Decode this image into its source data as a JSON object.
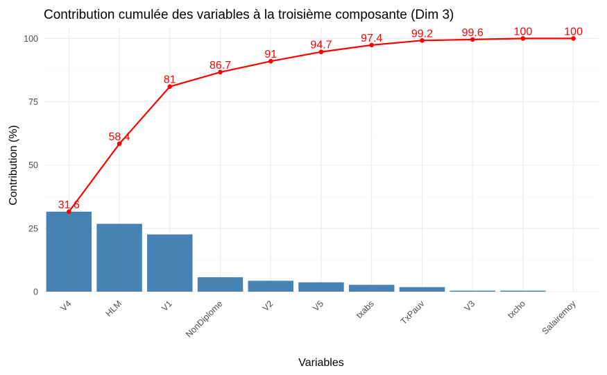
{
  "chart_data": {
    "type": "bar",
    "title": "Contribution cumulée des variables à la troisième composante (Dim 3)",
    "xlabel": "Variables",
    "ylabel": "Contribution (%)",
    "ylim": [
      0,
      104.5
    ],
    "yticks": [
      0,
      25,
      50,
      75,
      100
    ],
    "grid": true,
    "categories": [
      "V4",
      "HLM",
      "V1",
      "NonDiplome",
      "V2",
      "V5",
      "txabs",
      "TxPauv",
      "V3",
      "txcho",
      "Salairemoy"
    ],
    "series": [
      {
        "type": "bar",
        "values": [
          31.6,
          26.8,
          22.6,
          5.7,
          4.3,
          3.7,
          2.7,
          1.8,
          0.4,
          0.4,
          0.0
        ],
        "color": "#4682B4"
      },
      {
        "type": "line",
        "values": [
          31.6,
          58.4,
          81,
          86.7,
          91,
          94.7,
          97.4,
          99.2,
          99.6,
          100,
          100
        ],
        "labels": [
          "31.6",
          "58.4",
          "81",
          "86.7",
          "91",
          "94.7",
          "97.4",
          "99.2",
          "99.6",
          "100",
          "100"
        ],
        "color": "#ff0000"
      }
    ]
  }
}
